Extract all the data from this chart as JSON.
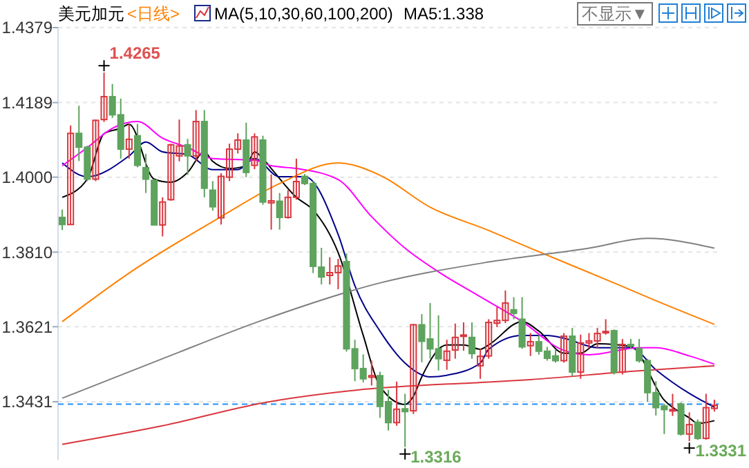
{
  "chart_data": {
    "type": "candlestick",
    "title": "美元加元",
    "subtitle": "<日线>",
    "legend_title": "MA(5,10,30,60,100,200)",
    "annotations": [
      "MA5:1.338",
      "不显示▼",
      "1.4265",
      "1.3316",
      "1.3331"
    ],
    "categories": [
      null,
      null,
      null,
      null,
      null,
      null,
      null,
      null,
      null,
      null,
      null,
      null,
      null,
      null,
      null,
      null,
      null,
      null,
      null,
      null,
      null,
      null,
      null,
      null,
      null,
      null,
      null,
      null,
      null,
      null,
      null,
      null,
      null,
      null,
      null,
      null,
      null,
      null,
      null,
      null,
      null,
      null,
      null,
      null,
      null,
      null,
      null,
      null,
      null,
      null,
      null,
      null,
      null,
      null,
      null,
      null,
      null,
      null,
      null,
      null,
      null,
      null,
      null,
      null,
      null,
      null,
      null,
      null,
      null,
      null,
      null,
      null,
      null,
      null,
      null,
      null,
      null,
      null,
      null
    ],
    "ohlc": [
      [
        1.3898,
        1.3918,
        1.3866,
        1.388
      ],
      [
        1.388,
        1.4131,
        1.388,
        1.4111
      ],
      [
        1.4111,
        1.4181,
        1.4041,
        1.4076
      ],
      [
        1.4076,
        1.408,
        1.399,
        1.3995
      ],
      [
        1.3995,
        1.4146,
        1.399,
        1.4144
      ],
      [
        1.4146,
        1.4265,
        1.414,
        1.4204
      ],
      [
        1.4204,
        1.4236,
        1.415,
        1.4158
      ],
      [
        1.4158,
        1.4199,
        1.4047,
        1.4071
      ],
      [
        1.4071,
        1.4135,
        1.4047,
        1.4096
      ],
      [
        1.4105,
        1.4135,
        1.4025,
        1.403
      ],
      [
        1.4024,
        1.4059,
        1.396,
        1.3995
      ],
      [
        1.3992,
        1.3995,
        1.3879,
        1.3879
      ],
      [
        1.3879,
        1.3949,
        1.385,
        1.3937
      ],
      [
        1.3943,
        1.4085,
        1.394,
        1.4082
      ],
      [
        1.4054,
        1.4146,
        1.404,
        1.4079
      ],
      [
        1.4082,
        1.4097,
        1.4006,
        1.4054
      ],
      [
        1.4054,
        1.417,
        1.404,
        1.4141
      ],
      [
        1.4141,
        1.417,
        1.3949,
        1.3972
      ],
      [
        1.3967,
        1.399,
        1.3915,
        1.3925
      ],
      [
        1.3897,
        1.401,
        1.388,
        1.4002
      ],
      [
        1.4,
        1.4085,
        1.399,
        1.4071
      ],
      [
        1.4071,
        1.4111,
        1.406,
        1.4094
      ],
      [
        1.4094,
        1.4138,
        1.4,
        1.4012
      ],
      [
        1.403,
        1.4111,
        1.402,
        1.4102
      ],
      [
        1.4094,
        1.4105,
        1.393,
        1.3937
      ],
      [
        1.3935,
        1.4007,
        1.3867,
        1.394
      ],
      [
        1.3939,
        1.396,
        1.3867,
        1.3898
      ],
      [
        1.3898,
        1.3967,
        1.3895,
        1.3949
      ],
      [
        1.3949,
        1.4047,
        1.3943,
        1.3989
      ],
      [
        1.4002,
        1.4008,
        1.398,
        1.3984
      ],
      [
        1.3984,
        1.399,
        1.3757,
        1.3774
      ],
      [
        1.3772,
        1.3821,
        1.3728,
        1.3747
      ],
      [
        1.3751,
        1.3797,
        1.3728,
        1.3758
      ],
      [
        1.3758,
        1.3793,
        1.3716,
        1.3775
      ],
      [
        1.3786,
        1.3807,
        1.3558,
        1.3565
      ],
      [
        1.3565,
        1.3588,
        1.3483,
        1.3515
      ],
      [
        1.3515,
        1.3551,
        1.348,
        1.3489
      ],
      [
        1.3493,
        1.3535,
        1.3472,
        1.3497
      ],
      [
        1.3497,
        1.3507,
        1.339,
        1.3419
      ],
      [
        1.3431,
        1.3461,
        1.3358,
        1.3378
      ],
      [
        1.3378,
        1.3482,
        1.337,
        1.3412
      ],
      [
        1.3413,
        1.3451,
        1.3316,
        1.3406
      ],
      [
        1.3408,
        1.3628,
        1.34,
        1.3626
      ],
      [
        1.3626,
        1.3653,
        1.3531,
        1.3584
      ],
      [
        1.359,
        1.3681,
        1.354,
        1.3565
      ],
      [
        1.3565,
        1.365,
        1.351,
        1.354
      ],
      [
        1.3536,
        1.3588,
        1.3512,
        1.3559
      ],
      [
        1.3562,
        1.3629,
        1.354,
        1.3594
      ],
      [
        1.3597,
        1.3632,
        1.356,
        1.36
      ],
      [
        1.3594,
        1.3632,
        1.354,
        1.3553
      ],
      [
        1.3522,
        1.3565,
        1.3489,
        1.3546
      ],
      [
        1.3547,
        1.364,
        1.354,
        1.3632
      ],
      [
        1.363,
        1.3671,
        1.362,
        1.3637
      ],
      [
        1.3637,
        1.3713,
        1.363,
        1.3681
      ],
      [
        1.3664,
        1.3696,
        1.364,
        1.3655
      ],
      [
        1.364,
        1.3696,
        1.3565,
        1.357
      ],
      [
        1.3573,
        1.3605,
        1.3547,
        1.3583
      ],
      [
        1.3583,
        1.36,
        1.355,
        1.3559
      ],
      [
        1.3559,
        1.357,
        1.3535,
        1.3541
      ],
      [
        1.3547,
        1.3564,
        1.353,
        1.3535
      ],
      [
        1.3535,
        1.3605,
        1.353,
        1.3597
      ],
      [
        1.3597,
        1.3618,
        1.3496,
        1.3506
      ],
      [
        1.3506,
        1.3601,
        1.3489,
        1.358
      ],
      [
        1.358,
        1.3605,
        1.3566,
        1.3585
      ],
      [
        1.3585,
        1.3618,
        1.3566,
        1.3604
      ],
      [
        1.3607,
        1.364,
        1.3601,
        1.3609
      ],
      [
        1.3611,
        1.3614,
        1.35,
        1.3506
      ],
      [
        1.3506,
        1.359,
        1.35,
        1.3576
      ],
      [
        1.3576,
        1.359,
        1.3565,
        1.3573
      ],
      [
        1.3566,
        1.359,
        1.353,
        1.3535
      ],
      [
        1.3535,
        1.354,
        1.3431,
        1.3454
      ],
      [
        1.3454,
        1.3483,
        1.3396,
        1.3416
      ],
      [
        1.342,
        1.3426,
        1.3349,
        1.3411
      ],
      [
        1.3408,
        1.3451,
        1.3395,
        1.3411
      ],
      [
        1.3425,
        1.3429,
        1.3345,
        1.3349
      ],
      [
        1.3349,
        1.3404,
        1.3331,
        1.3373
      ],
      [
        1.3379,
        1.3386,
        1.3334,
        1.3338
      ],
      [
        1.3338,
        1.3451,
        1.3335,
        1.3416
      ],
      [
        1.3414,
        1.3436,
        1.3406,
        1.3422
      ]
    ],
    "series": [
      {
        "type": "line",
        "color": "#000000",
        "values": [
          1.3949,
          null,
          null,
          1.3995,
          null,
          1.411,
          null,
          1.4124,
          1.4134,
          null,
          null,
          1.3995,
          null,
          1.3987,
          null,
          1.4012,
          null,
          1.4064,
          1.404,
          null,
          1.4022,
          null,
          1.4029,
          1.4064,
          1.4047,
          1.4022,
          null,
          null,
          1.3949,
          null,
          1.3917,
          null,
          null,
          1.3809,
          null,
          null,
          1.3599,
          null,
          1.347,
          null,
          null,
          1.3424,
          1.3445,
          1.3494,
          null,
          null,
          1.3575,
          null,
          1.3575,
          null,
          1.3564,
          1.3575,
          null,
          null,
          null,
          1.3634,
          null,
          1.361,
          null,
          null,
          1.3554,
          null,
          1.3554,
          null,
          1.3578,
          null,
          null,
          null,
          1.3571,
          null,
          null,
          null,
          1.3435,
          null,
          null,
          1.339,
          1.3376,
          null,
          1.3383
        ]
      },
      {
        "type": "line",
        "color": "#00008b",
        "values": [
          1.4036,
          null,
          null,
          1.4001,
          null,
          null,
          null,
          null,
          1.4054,
          null,
          1.4089,
          null,
          1.4064,
          null,
          null,
          1.4057,
          null,
          null,
          1.4019,
          null,
          null,
          1.4019,
          null,
          1.4047,
          null,
          null,
          1.4001,
          null,
          null,
          1.4001,
          null,
          null,
          null,
          1.3855,
          null,
          1.3725,
          null,
          null,
          1.361,
          null,
          null,
          1.3529,
          null,
          null,
          1.3494,
          null,
          1.3498,
          null,
          null,
          null,
          1.3529,
          1.3564,
          null,
          null,
          null,
          1.3599,
          null,
          null,
          1.3599,
          null,
          1.3592,
          null,
          null,
          null,
          1.3568,
          null,
          null,
          null,
          1.3568,
          null,
          null,
          1.3512,
          null,
          null,
          null,
          1.3452,
          null,
          null,
          1.3417
        ]
      },
      {
        "type": "line",
        "color": "#ff00ff",
        "values": [
          1.4029,
          null,
          null,
          1.4075,
          null,
          null,
          1.4124,
          null,
          null,
          1.4141,
          null,
          null,
          1.4099,
          null,
          null,
          1.4075,
          null,
          null,
          1.4047,
          null,
          null,
          null,
          null,
          1.4043,
          null,
          1.4029,
          null,
          null,
          1.4022,
          null,
          null,
          null,
          null,
          1.3994,
          null,
          null,
          null,
          1.39,
          null,
          null,
          null,
          1.382,
          null,
          null,
          null,
          1.376,
          null,
          null,
          null,
          null,
          1.3697,
          null,
          null,
          null,
          null,
          1.3634,
          null,
          null,
          null,
          null,
          1.3561,
          null,
          null,
          1.355,
          null,
          null,
          null,
          null,
          null,
          1.3568,
          null,
          1.3568,
          null,
          null,
          null,
          1.3547,
          null,
          null,
          1.3526
        ]
      },
      {
        "type": "line",
        "color": "#ff8000",
        "values": [
          1.3634,
          null,
          null,
          null,
          null,
          null,
          null,
          null,
          1.3757,
          null,
          null,
          null,
          null,
          null,
          null,
          null,
          null,
          null,
          null,
          1.39,
          null,
          null,
          null,
          null,
          null,
          null,
          1.3984,
          null,
          null,
          null,
          null,
          null,
          null,
          1.4036,
          null,
          null,
          null,
          null,
          1.4005,
          null,
          null,
          null,
          null,
          null,
          1.3924,
          null,
          null,
          null,
          null,
          null,
          null,
          1.3865,
          null,
          null,
          null,
          null,
          1.382,
          null,
          null,
          null,
          null,
          null,
          null,
          null,
          null,
          null,
          1.3732,
          null,
          null,
          null,
          null,
          1.3687,
          null,
          null,
          null,
          null,
          null,
          null,
          1.3627
        ]
      },
      {
        "type": "line",
        "color": "#808080",
        "values": [
          1.344,
          null,
          null,
          null,
          null,
          null,
          null,
          null,
          null,
          null,
          null,
          null,
          1.354,
          null,
          null,
          null,
          null,
          null,
          null,
          null,
          null,
          null,
          null,
          null,
          1.3638,
          null,
          null,
          null,
          null,
          null,
          null,
          null,
          null,
          null,
          null,
          null,
          null,
          null,
          1.3732,
          null,
          null,
          null,
          null,
          null,
          null,
          null,
          null,
          null,
          null,
          null,
          null,
          1.3785,
          null,
          null,
          null,
          null,
          null,
          null,
          null,
          null,
          null,
          null,
          null,
          1.382,
          null,
          null,
          null,
          null,
          null,
          null,
          1.3845,
          null,
          null,
          null,
          null,
          null,
          null,
          null,
          1.382
        ]
      },
      {
        "type": "line",
        "color": "#d9363e",
        "values": [
          1.3323,
          null,
          null,
          null,
          null,
          null,
          null,
          null,
          null,
          null,
          null,
          null,
          1.337,
          null,
          null,
          null,
          null,
          null,
          null,
          null,
          null,
          null,
          null,
          null,
          1.3428,
          null,
          null,
          null,
          null,
          null,
          null,
          null,
          null,
          null,
          null,
          1.346,
          null,
          null,
          null,
          null,
          null,
          null,
          null,
          null,
          null,
          null,
          null,
          null,
          null,
          null,
          null,
          1.3481,
          null,
          null,
          null,
          null,
          1.3487,
          null,
          null,
          null,
          null,
          null,
          null,
          null,
          null,
          null,
          null,
          null,
          1.3508,
          null,
          null,
          null,
          null,
          null,
          null,
          null,
          null,
          null,
          1.3522
        ]
      }
    ],
    "ref_lines": [
      {
        "axis": "y",
        "value": 1.3425,
        "color": "#1e90ff",
        "line_style": "dashed"
      }
    ],
    "ylim": [
      1.3284,
      1.4379
    ],
    "yticks": [
      1.3431,
      1.3621,
      {
        "value": 1.381,
        "label": "1.3810"
      },
      {
        "value": 1.4,
        "label": "1.4000"
      },
      1.4189,
      1.4379
    ],
    "grid": "y"
  }
}
